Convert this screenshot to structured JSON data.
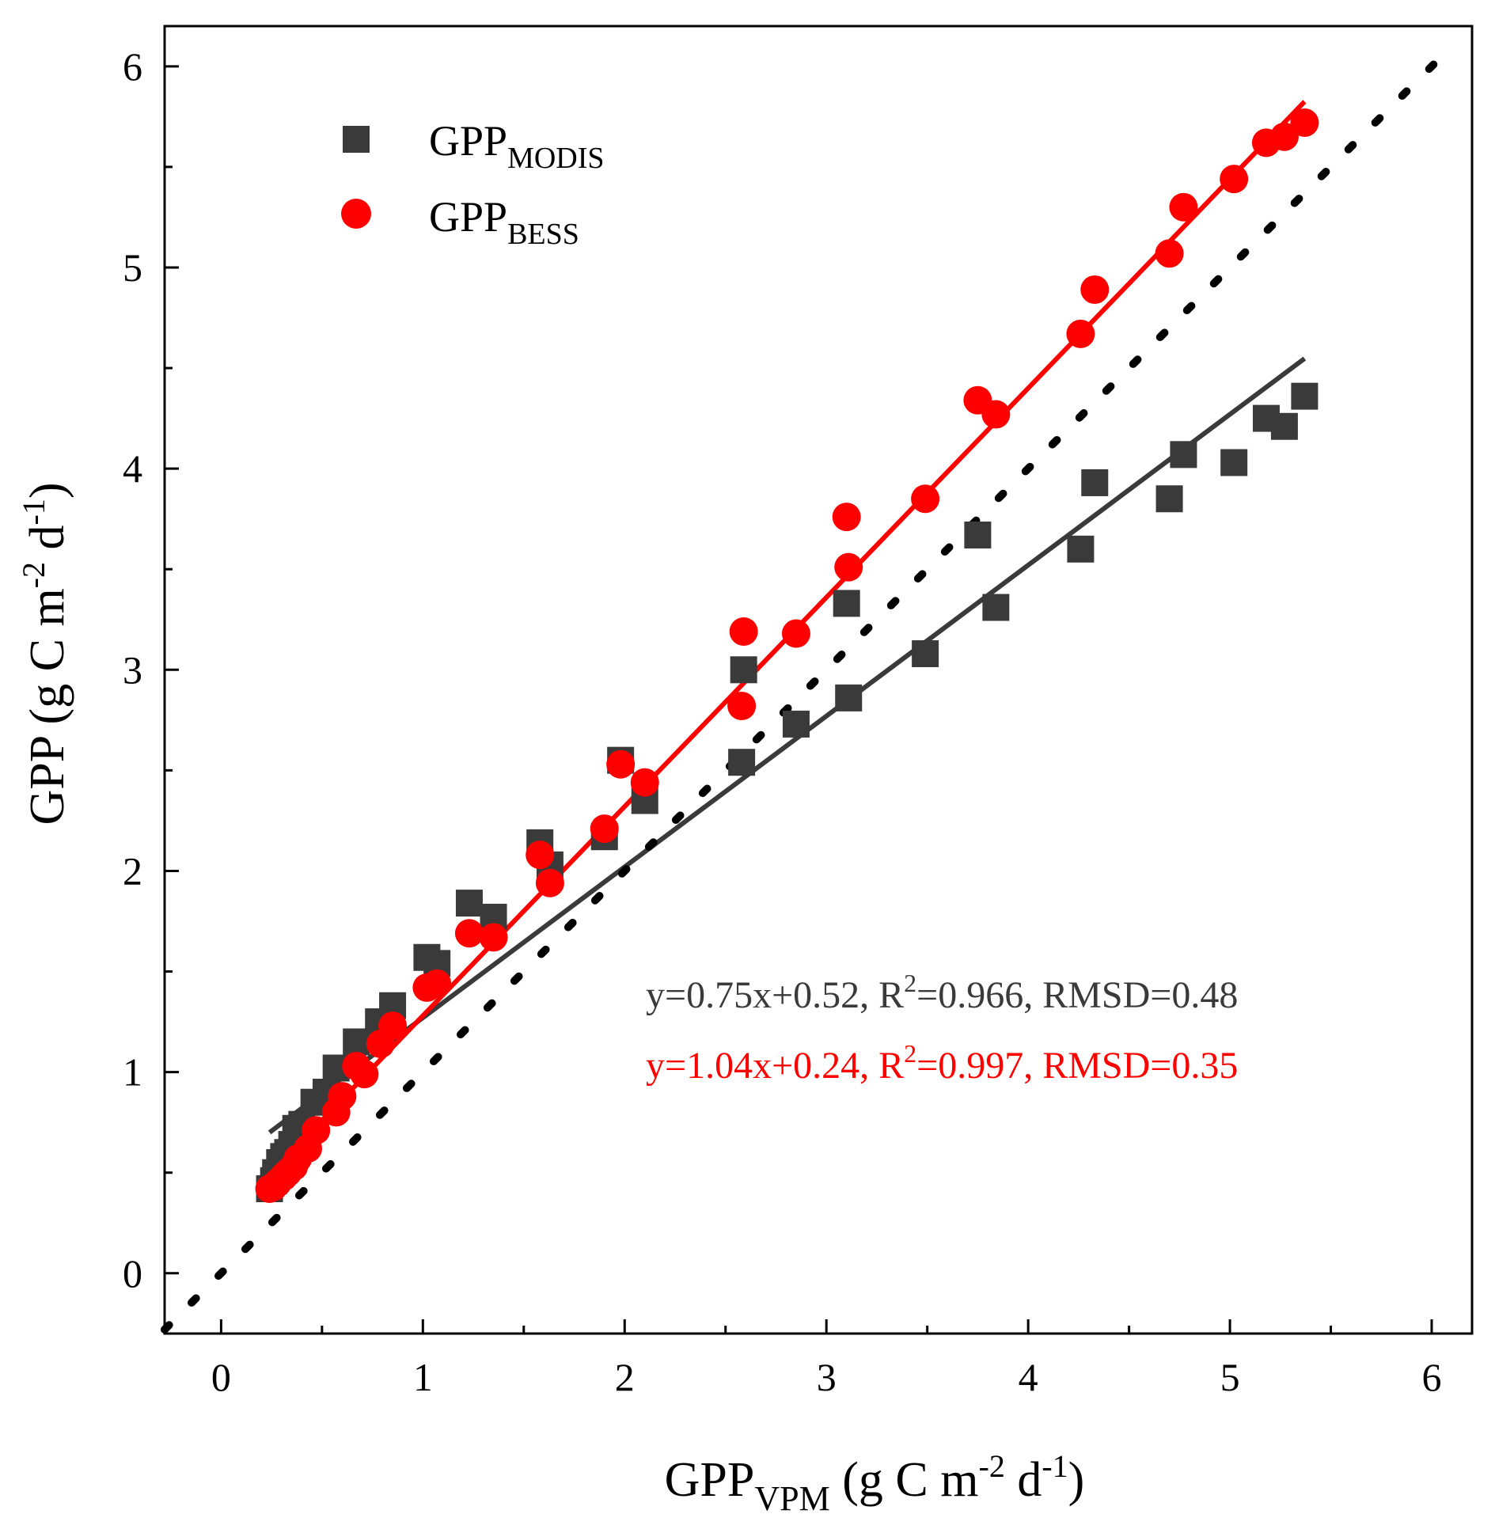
{
  "chart_data": {
    "type": "scatter",
    "xlabel": {
      "base": "GPP",
      "sub": "VPM",
      "unit_pre": " (g C m",
      "sup1": "-2",
      "unit_mid": " d",
      "sup2": "-1",
      "unit_post": ")"
    },
    "ylabel": {
      "base": "GPP",
      "unit_pre": " (g C m",
      "sup1": "-2",
      "unit_mid": " d",
      "sup2": "-1",
      "unit_post": ")"
    },
    "xlim": [
      -0.28,
      6.2
    ],
    "ylim": [
      -0.3,
      6.2
    ],
    "xticks": [
      0,
      1,
      2,
      3,
      4,
      5,
      6
    ],
    "yticks": [
      0,
      1,
      2,
      3,
      4,
      5,
      6
    ],
    "xtick_labels": [
      "0",
      "1",
      "2",
      "3",
      "4",
      "5",
      "6"
    ],
    "ytick_labels": [
      "0",
      "1",
      "2",
      "3",
      "4",
      "5",
      "6"
    ],
    "legend_position": "top-left",
    "series": [
      {
        "name": "GPP_MODIS",
        "label_base": "GPP",
        "label_sub": "MODIS",
        "marker": "square",
        "color": "#3a3a3a",
        "x": [
          0.24,
          0.26,
          0.27,
          0.29,
          0.31,
          0.33,
          0.35,
          0.37,
          0.4,
          0.46,
          0.52,
          0.57,
          0.67,
          0.78,
          0.85,
          1.02,
          1.07,
          1.23,
          1.35,
          1.58,
          1.63,
          1.9,
          1.98,
          2.1,
          2.58,
          2.59,
          2.85,
          3.1,
          3.11,
          3.49,
          3.75,
          3.84,
          4.26,
          4.33,
          4.7,
          4.77,
          5.02,
          5.18,
          5.27,
          5.37
        ],
        "y": [
          0.42,
          0.46,
          0.5,
          0.55,
          0.58,
          0.6,
          0.64,
          0.72,
          0.74,
          0.85,
          0.9,
          1.02,
          1.15,
          1.25,
          1.33,
          1.57,
          1.54,
          1.84,
          1.77,
          2.14,
          2.03,
          2.17,
          2.55,
          2.35,
          2.54,
          3.0,
          2.73,
          3.33,
          2.86,
          3.08,
          3.67,
          3.31,
          3.6,
          3.93,
          3.85,
          4.07,
          4.03,
          4.25,
          4.21,
          4.36
        ]
      },
      {
        "name": "GPP_BESS",
        "label_base": "GPP",
        "label_sub": "BESS",
        "marker": "circle",
        "color": "#ff0000",
        "x": [
          0.24,
          0.26,
          0.28,
          0.31,
          0.33,
          0.36,
          0.38,
          0.43,
          0.47,
          0.57,
          0.6,
          0.67,
          0.71,
          0.79,
          0.85,
          1.02,
          1.07,
          1.23,
          1.35,
          1.58,
          1.63,
          1.9,
          1.98,
          2.1,
          2.58,
          2.59,
          2.85,
          3.1,
          3.11,
          3.49,
          3.75,
          3.84,
          4.26,
          4.33,
          4.7,
          4.77,
          5.02,
          5.18,
          5.27,
          5.37
        ],
        "y": [
          0.42,
          0.43,
          0.45,
          0.48,
          0.5,
          0.53,
          0.57,
          0.62,
          0.71,
          0.8,
          0.88,
          1.03,
          0.99,
          1.14,
          1.23,
          1.42,
          1.44,
          1.69,
          1.67,
          2.08,
          1.94,
          2.21,
          2.53,
          2.44,
          2.82,
          3.19,
          3.18,
          3.76,
          3.51,
          3.85,
          4.34,
          4.27,
          4.67,
          4.89,
          5.07,
          5.3,
          5.44,
          5.62,
          5.65,
          5.72
        ]
      }
    ],
    "fits": [
      {
        "series": "GPP_MODIS",
        "slope": 0.75,
        "intercept": 0.52,
        "x_range": [
          0.24,
          5.37
        ],
        "color": "#3a3a3a",
        "style": "solid"
      },
      {
        "series": "GPP_BESS",
        "slope": 1.04,
        "intercept": 0.24,
        "x_range": [
          0.24,
          5.37
        ],
        "color": "#ff0000",
        "style": "solid"
      },
      {
        "name": "1:1 line",
        "slope": 1.0,
        "intercept": 0.0,
        "x_range": [
          -0.28,
          6.05
        ],
        "color": "#000000",
        "style": "dotted"
      }
    ],
    "annotations": [
      {
        "pre": "y=0.75x+0.52, R",
        "sup": "2",
        "post": "=0.966, RMSD=0.48",
        "color": "#3a3a3a"
      },
      {
        "pre": "y=1.04x+0.24, R",
        "sup": "2",
        "post": "=0.997, RMSD=0.35",
        "color": "#ff0000"
      }
    ]
  }
}
